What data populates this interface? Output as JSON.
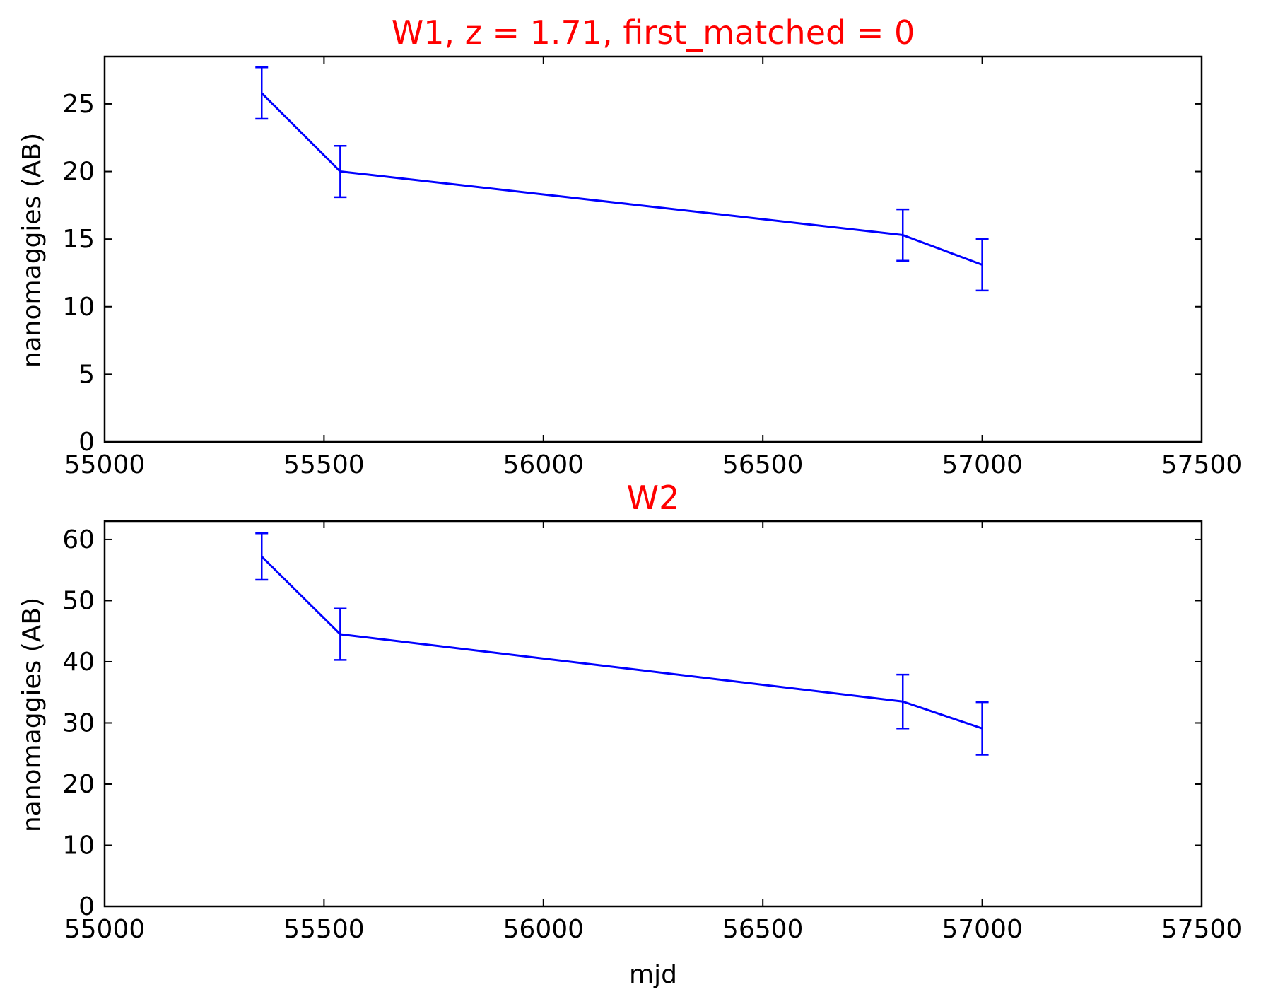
{
  "colors": {
    "title": "#ff0000",
    "series": "#0000ff",
    "axes": "#000000",
    "background": "#ffffff"
  },
  "chart_data": [
    {
      "type": "line",
      "title": "W1, z = 1.71, first_matched = 0",
      "xlabel": "",
      "ylabel": "nanomaggies (AB)",
      "xlim": [
        55000,
        57500
      ],
      "ylim": [
        0,
        28.5
      ],
      "xticks": [
        55000,
        55500,
        56000,
        56500,
        57000,
        57500
      ],
      "yticks": [
        0,
        5,
        10,
        15,
        20,
        25
      ],
      "grid": false,
      "series": [
        {
          "x": [
            55358,
            55537,
            56819,
            57000
          ],
          "y": [
            25.8,
            20.0,
            15.3,
            13.1
          ],
          "yerr": [
            1.9,
            1.9,
            1.9,
            1.9
          ]
        }
      ]
    },
    {
      "type": "line",
      "title": "W2",
      "xlabel": "mjd",
      "ylabel": "nanomaggies (AB)",
      "xlim": [
        55000,
        57500
      ],
      "ylim": [
        0,
        63
      ],
      "xticks": [
        55000,
        55500,
        56000,
        56500,
        57000,
        57500
      ],
      "yticks": [
        0,
        10,
        20,
        30,
        40,
        50,
        60
      ],
      "grid": false,
      "series": [
        {
          "x": [
            55358,
            55537,
            56819,
            57000
          ],
          "y": [
            57.2,
            44.5,
            33.5,
            29.1
          ],
          "yerr": [
            3.8,
            4.2,
            4.4,
            4.3
          ]
        }
      ]
    }
  ]
}
